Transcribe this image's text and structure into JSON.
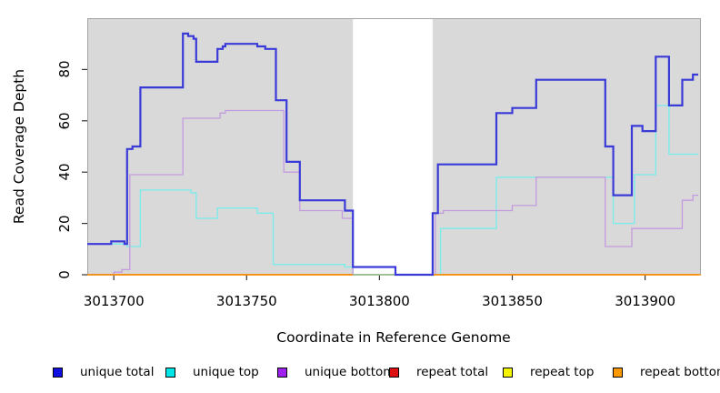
{
  "figure": {
    "panel_fill": "#d9d9d9",
    "panel_border": "#a3a3a3",
    "axis_color": "#333333",
    "text_color": "#000000",
    "gap_band": {
      "fill": "#ffffff",
      "x_start": 3013790,
      "x_end": 3013820,
      "baseline_color": "#8fc98f"
    }
  },
  "chart_data": {
    "type": "line",
    "subtype": "step",
    "title": "",
    "xlabel": "Coordinate in Reference Genome",
    "ylabel": "Read Coverage Depth",
    "xlim": [
      3013690,
      3013921
    ],
    "ylim": [
      0,
      100
    ],
    "x_ticks": [
      3013700,
      3013750,
      3013800,
      3013850,
      3013900
    ],
    "y_ticks": [
      0,
      20,
      40,
      60,
      80
    ],
    "grid": false,
    "legend_position": "bottom",
    "series": [
      {
        "name": "unique total",
        "color": "#3a3ad8",
        "legend_color": "#1010e0",
        "width": 2.2,
        "z": 6,
        "points": [
          [
            3013690,
            12
          ],
          [
            3013699,
            13
          ],
          [
            3013704,
            12
          ],
          [
            3013705,
            49
          ],
          [
            3013707,
            50
          ],
          [
            3013710,
            73
          ],
          [
            3013726,
            94
          ],
          [
            3013728,
            93
          ],
          [
            3013730,
            92
          ],
          [
            3013731,
            83
          ],
          [
            3013739,
            88
          ],
          [
            3013741,
            89
          ],
          [
            3013742,
            90
          ],
          [
            3013754,
            89
          ],
          [
            3013757,
            88
          ],
          [
            3013761,
            68
          ],
          [
            3013765,
            44
          ],
          [
            3013770,
            29
          ],
          [
            3013787,
            25
          ],
          [
            3013790,
            3
          ],
          [
            3013806,
            0
          ],
          [
            3013820,
            24
          ],
          [
            3013822,
            43
          ],
          [
            3013844,
            63
          ],
          [
            3013850,
            65
          ],
          [
            3013859,
            76
          ],
          [
            3013885,
            50
          ],
          [
            3013888,
            31
          ],
          [
            3013895,
            58
          ],
          [
            3013899,
            56
          ],
          [
            3013904,
            85
          ],
          [
            3013909,
            66
          ],
          [
            3013914,
            76
          ],
          [
            3013918,
            78
          ],
          [
            3013920,
            78
          ]
        ]
      },
      {
        "name": "unique top",
        "color": "#79ecec",
        "legend_color": "#00e5e5",
        "width": 1.3,
        "z": 3,
        "points": [
          [
            3013690,
            12
          ],
          [
            3013705,
            11
          ],
          [
            3013710,
            33
          ],
          [
            3013729,
            32
          ],
          [
            3013731,
            22
          ],
          [
            3013739,
            26
          ],
          [
            3013754,
            24
          ],
          [
            3013760,
            4
          ],
          [
            3013787,
            3
          ],
          [
            3013790,
            0
          ],
          [
            3013823,
            18
          ],
          [
            3013844,
            38
          ],
          [
            3013888,
            20
          ],
          [
            3013896,
            39
          ],
          [
            3013904,
            66
          ],
          [
            3013909,
            47
          ],
          [
            3013920,
            47
          ]
        ]
      },
      {
        "name": "unique bottom",
        "color": "#c49ade",
        "legend_color": "#a020f0",
        "width": 1.3,
        "z": 4,
        "points": [
          [
            3013690,
            0
          ],
          [
            3013700,
            1
          ],
          [
            3013703,
            2
          ],
          [
            3013706,
            39
          ],
          [
            3013726,
            61
          ],
          [
            3013740,
            63
          ],
          [
            3013742,
            64
          ],
          [
            3013764,
            40
          ],
          [
            3013770,
            25
          ],
          [
            3013786,
            22
          ],
          [
            3013790,
            0
          ],
          [
            3013821,
            24
          ],
          [
            3013824,
            25
          ],
          [
            3013850,
            27
          ],
          [
            3013859,
            38
          ],
          [
            3013885,
            11
          ],
          [
            3013895,
            18
          ],
          [
            3013914,
            29
          ],
          [
            3013918,
            31
          ],
          [
            3013920,
            31
          ]
        ]
      },
      {
        "name": "repeat total",
        "color": "#cc0000",
        "legend_color": "#dd1111",
        "width": 1.2,
        "z": 1,
        "points": [
          [
            3013690,
            0
          ],
          [
            3013920,
            0
          ]
        ]
      },
      {
        "name": "repeat top",
        "color": "#e8e800",
        "legend_color": "#f5f500",
        "width": 1.2,
        "z": 2,
        "points": [
          [
            3013690,
            0
          ],
          [
            3013920,
            0
          ]
        ]
      },
      {
        "name": "repeat bottom",
        "color": "#ff8c00",
        "legend_color": "#ff9900",
        "width": 1.6,
        "z": 5,
        "gap_in_band": true,
        "points": [
          [
            3013690,
            0
          ],
          [
            3013920,
            0
          ]
        ]
      }
    ]
  }
}
